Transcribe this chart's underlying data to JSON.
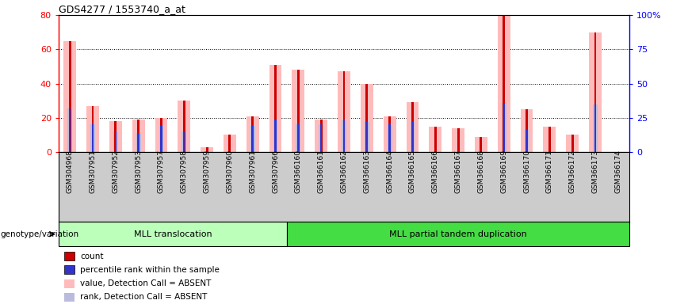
{
  "title": "GDS4277 / 1553740_a_at",
  "samples": [
    "GSM304968",
    "GSM307951",
    "GSM307952",
    "GSM307953",
    "GSM307957",
    "GSM307958",
    "GSM307959",
    "GSM307960",
    "GSM307961",
    "GSM307966",
    "GSM366160",
    "GSM366161",
    "GSM366162",
    "GSM366163",
    "GSM366164",
    "GSM366165",
    "GSM366166",
    "GSM366167",
    "GSM366168",
    "GSM366169",
    "GSM366170",
    "GSM366171",
    "GSM366172",
    "GSM366173",
    "GSM366174"
  ],
  "count_values": [
    65,
    27,
    18,
    19,
    20,
    30,
    3,
    10,
    21,
    51,
    48,
    19,
    47,
    40,
    21,
    29,
    15,
    14,
    9,
    80,
    25,
    15,
    10,
    70,
    0
  ],
  "rank_values": [
    32,
    20,
    15,
    14,
    19,
    15,
    0,
    0,
    19,
    24,
    20,
    20,
    23,
    22,
    20,
    22,
    0,
    0,
    0,
    36,
    16,
    0,
    0,
    35,
    0
  ],
  "absent_value_values": [
    65,
    27,
    18,
    19,
    20,
    30,
    3,
    10,
    21,
    51,
    48,
    19,
    47,
    40,
    21,
    29,
    15,
    14,
    9,
    80,
    25,
    15,
    10,
    70,
    0
  ],
  "absent_rank_values": [
    32,
    20,
    15,
    14,
    19,
    15,
    0,
    0,
    19,
    24,
    20,
    20,
    23,
    22,
    20,
    22,
    0,
    0,
    0,
    36,
    16,
    0,
    0,
    35,
    0
  ],
  "group1_label": "MLL translocation",
  "group2_label": "MLL partial tandem duplication",
  "group1_count": 10,
  "group2_count": 15,
  "genotype_label": "genotype/variation",
  "ylim_left": [
    0,
    80
  ],
  "ylim_right": [
    0,
    100
  ],
  "yticks_left": [
    0,
    20,
    40,
    60,
    80
  ],
  "yticks_right": [
    0,
    25,
    50,
    75,
    100
  ],
  "ytick_labels_right": [
    "0",
    "25",
    "50",
    "75",
    "100%"
  ],
  "color_count": "#cc0000",
  "color_rank": "#3333cc",
  "color_absent_value": "#ffbbbb",
  "color_absent_rank": "#bbbbdd",
  "bg_color": "#cccccc",
  "group1_color": "#bbffbb",
  "group2_color": "#44dd44",
  "legend_items": [
    {
      "label": "count",
      "color": "#cc0000"
    },
    {
      "label": "percentile rank within the sample",
      "color": "#3333cc"
    },
    {
      "label": "value, Detection Call = ABSENT",
      "color": "#ffbbbb"
    },
    {
      "label": "rank, Detection Call = ABSENT",
      "color": "#bbbbdd"
    }
  ]
}
